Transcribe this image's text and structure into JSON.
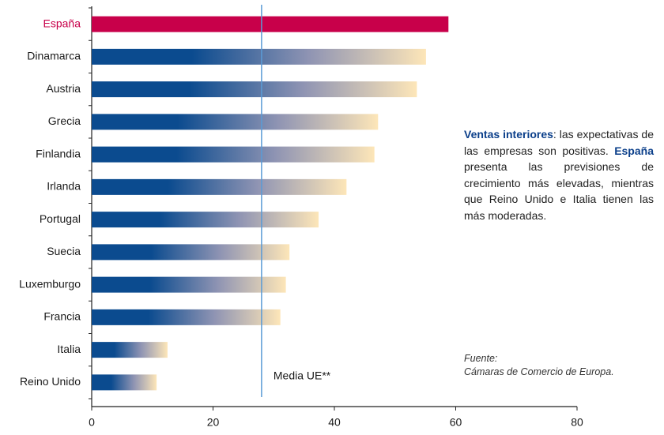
{
  "chart_data": {
    "type": "hbar",
    "categories": [
      "España",
      "Dinamarca",
      "Austria",
      "Grecia",
      "Finlandia",
      "Irlanda",
      "Portugal",
      "Suecia",
      "Luxemburgo",
      "Francia",
      "Italia",
      "Reino Unido"
    ],
    "values": [
      58.8,
      55.1,
      53.6,
      47.2,
      46.6,
      42.0,
      37.4,
      32.6,
      32.0,
      31.1,
      12.5,
      10.7
    ],
    "color": [
      "#0b4b8f",
      "#fde6b8"
    ],
    "highlight_index": 0,
    "highlight_color": "#c8004a",
    "xlim": [
      0,
      80
    ],
    "xticks": [
      0,
      20,
      40,
      60,
      80
    ],
    "reference_line": {
      "value": 28,
      "label": "Media UE**",
      "color": "#5b9bd5"
    },
    "annotation": [
      {
        "text": "Ventas interiores",
        "bold": true
      },
      {
        "text": ": las expecta­tivas de las empresas son posi­tivas. ",
        "bold": false
      },
      {
        "text": "España",
        "bold": true
      },
      {
        "text": " presenta las pre­visiones de crecimiento más elevadas, mientras que Reino Unido e Italia tienen las más moderadas.",
        "bold": false
      }
    ],
    "source": [
      "Fuente:",
      "Cámaras de Comercio de Europa."
    ]
  }
}
